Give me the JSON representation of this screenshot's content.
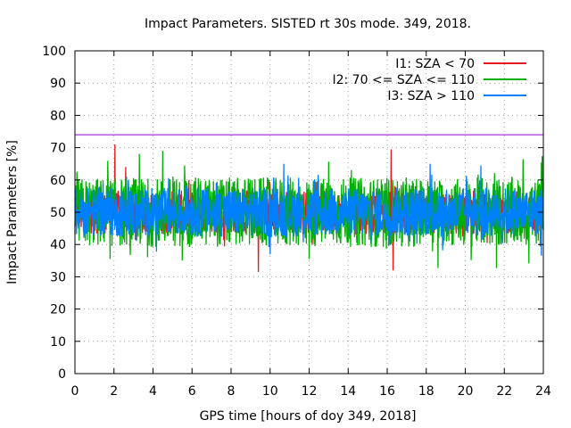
{
  "chart_data": {
    "type": "line",
    "title": "Impact Parameters. SISTED rt 30s mode. 349, 2018.",
    "xlabel": "GPS time [hours of doy 349, 2018]",
    "ylabel": "Impact Parameters [%]",
    "xlim": [
      0,
      24
    ],
    "ylim": [
      0,
      100
    ],
    "xticks": [
      0,
      2,
      4,
      6,
      8,
      10,
      12,
      14,
      16,
      18,
      20,
      22,
      24
    ],
    "yticks": [
      0,
      10,
      20,
      30,
      40,
      50,
      60,
      70,
      80,
      90,
      100
    ],
    "grid": true,
    "legend_position": "top-right",
    "threshold_line": {
      "y": 74,
      "color": "#9400d3"
    },
    "series": [
      {
        "name": "I1: SZA < 70",
        "color": "#e41a1c",
        "mean": 50,
        "typical_range": [
          43,
          58
        ],
        "notable_points": [
          {
            "x": 2.05,
            "y": 71
          },
          {
            "x": 2.6,
            "y": 64
          },
          {
            "x": 16.2,
            "y": 69.5
          },
          {
            "x": 16.3,
            "y": 32
          },
          {
            "x": 9.4,
            "y": 31.5
          }
        ]
      },
      {
        "name": "I2: 70 <= SZA <= 110",
        "color": "#00b000",
        "mean": 50,
        "typical_range": [
          38,
          62
        ],
        "notable_points": [
          {
            "x": 3.3,
            "y": 68
          },
          {
            "x": 4.5,
            "y": 69
          },
          {
            "x": 1.8,
            "y": 35.5
          },
          {
            "x": 5.5,
            "y": 35
          },
          {
            "x": 12.0,
            "y": 35.5
          }
        ]
      },
      {
        "name": "I3: SZA > 110",
        "color": "#0080ff",
        "mean": 50,
        "typical_range": [
          42,
          59
        ],
        "notable_points": [
          {
            "x": 10.7,
            "y": 65
          },
          {
            "x": 18.2,
            "y": 65
          },
          {
            "x": 20.8,
            "y": 64.5
          },
          {
            "x": 23.9,
            "y": 36.5
          },
          {
            "x": 10.0,
            "y": 37
          }
        ]
      }
    ]
  }
}
